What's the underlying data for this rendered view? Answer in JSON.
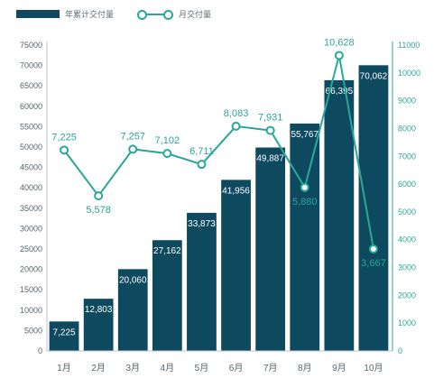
{
  "chart_data": {
    "type": "bar",
    "categories": [
      "1月",
      "2月",
      "3月",
      "4月",
      "5月",
      "6月",
      "7月",
      "8月",
      "9月",
      "10月"
    ],
    "series": [
      {
        "name": "年累计交付量",
        "type": "bar",
        "axis": "left",
        "color": "#0d4a5f",
        "values": [
          7225,
          12803,
          20060,
          27162,
          33873,
          41956,
          49887,
          55767,
          66395,
          70062
        ],
        "labels": [
          "7,225",
          "12,803",
          "20,060",
          "27,162",
          "33,873",
          "41,956",
          "49,887",
          "55,767",
          "66,395",
          "70,062"
        ]
      },
      {
        "name": "月交付量",
        "type": "line",
        "axis": "right",
        "color": "#2aa69a",
        "values": [
          7225,
          5578,
          7257,
          7102,
          6711,
          8083,
          7931,
          5880,
          10628,
          3667
        ],
        "labels": [
          "7,225",
          "5,578",
          "7,257",
          "7,102",
          "6,711",
          "8,083",
          "7,931",
          "5,880",
          "10,628",
          "3,667"
        ]
      }
    ],
    "y_left": {
      "range": [
        0,
        75000
      ],
      "ticks": [
        0,
        5000,
        10000,
        15000,
        20000,
        25000,
        30000,
        35000,
        40000,
        45000,
        50000,
        55000,
        60000,
        65000,
        70000,
        75000
      ]
    },
    "y_right": {
      "range": [
        0,
        11000
      ],
      "ticks": [
        0,
        1000,
        2000,
        3000,
        4000,
        5000,
        6000,
        7000,
        8000,
        9000,
        10000,
        11000
      ],
      "color": "#2aa69a"
    },
    "grid": false,
    "legend_position": "top-left"
  }
}
